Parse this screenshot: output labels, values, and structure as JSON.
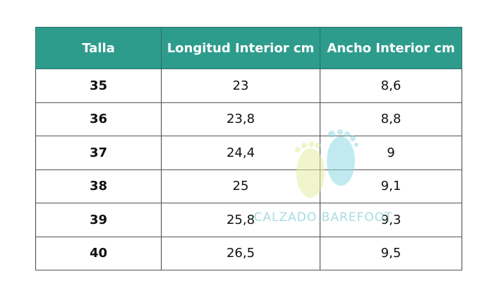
{
  "table": {
    "header": [
      "Talla",
      "Longitud Interior cm",
      "Ancho Interior cm"
    ],
    "rows": [
      [
        "35",
        "23",
        "8,6"
      ],
      [
        "36",
        "23,8",
        "8,8"
      ],
      [
        "37",
        "24,4",
        "9"
      ],
      [
        "38",
        "25",
        "9,1"
      ],
      [
        "39",
        "25,8",
        "9,3"
      ],
      [
        "40",
        "26,5",
        "9,5"
      ]
    ]
  },
  "watermark": {
    "text": "CALZADO BAREFOOT"
  }
}
